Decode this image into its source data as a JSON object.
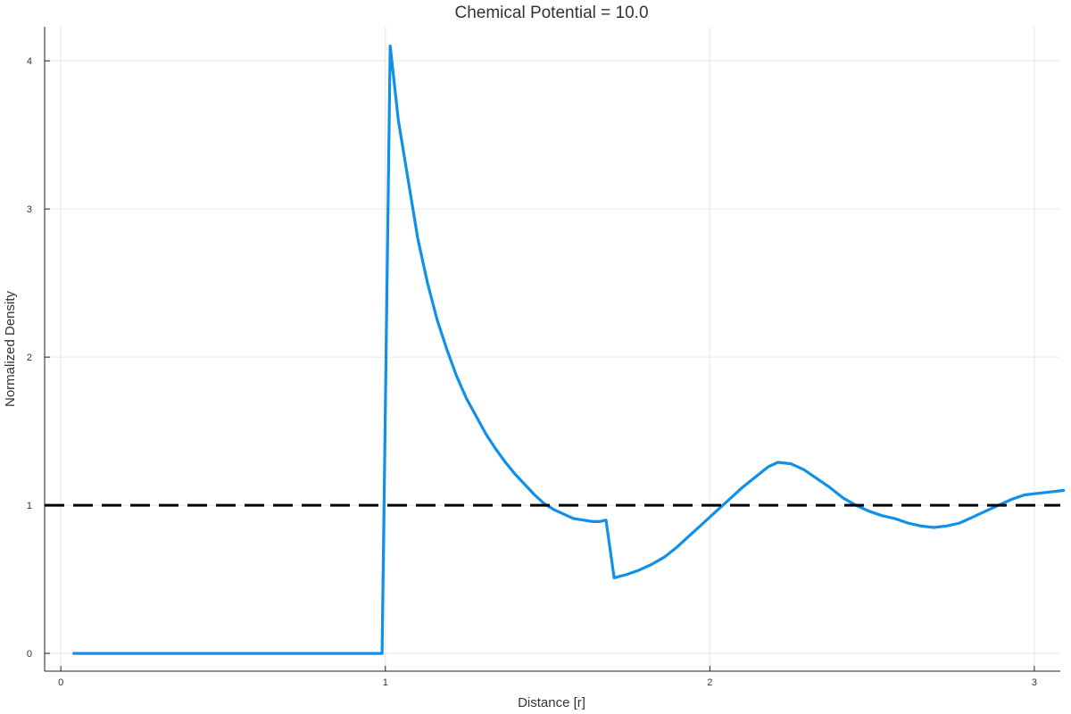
{
  "chart_data": {
    "type": "line",
    "title": "Chemical Potential = 10.0",
    "xlabel": "Distance [r]",
    "ylabel": "Normalized Density",
    "xlim": [
      -0.05,
      3.08
    ],
    "ylim": [
      -0.12,
      4.23
    ],
    "x_ticks": [
      0,
      1,
      2,
      3
    ],
    "y_ticks": [
      0,
      1,
      2,
      3,
      4
    ],
    "grid": true,
    "legend": "none",
    "series": [
      {
        "color": "#1090e8",
        "points": [
          [
            0.04,
            0.0
          ],
          [
            0.5,
            0.0
          ],
          [
            0.99,
            0.0
          ],
          [
            1.015,
            4.1
          ],
          [
            1.04,
            3.6
          ],
          [
            1.07,
            3.2
          ],
          [
            1.1,
            2.8
          ],
          [
            1.13,
            2.5
          ],
          [
            1.16,
            2.25
          ],
          [
            1.19,
            2.05
          ],
          [
            1.22,
            1.87
          ],
          [
            1.25,
            1.72
          ],
          [
            1.28,
            1.6
          ],
          [
            1.31,
            1.48
          ],
          [
            1.34,
            1.38
          ],
          [
            1.37,
            1.29
          ],
          [
            1.4,
            1.21
          ],
          [
            1.43,
            1.14
          ],
          [
            1.46,
            1.07
          ],
          [
            1.49,
            1.01
          ],
          [
            1.52,
            0.97
          ],
          [
            1.55,
            0.94
          ],
          [
            1.58,
            0.91
          ],
          [
            1.61,
            0.9
          ],
          [
            1.64,
            0.89
          ],
          [
            1.66,
            0.89
          ],
          [
            1.68,
            0.9
          ],
          [
            1.705,
            0.51
          ],
          [
            1.74,
            0.53
          ],
          [
            1.78,
            0.56
          ],
          [
            1.82,
            0.6
          ],
          [
            1.86,
            0.65
          ],
          [
            1.9,
            0.72
          ],
          [
            1.94,
            0.8
          ],
          [
            1.98,
            0.88
          ],
          [
            2.02,
            0.96
          ],
          [
            2.06,
            1.04
          ],
          [
            2.1,
            1.12
          ],
          [
            2.14,
            1.19
          ],
          [
            2.18,
            1.26
          ],
          [
            2.21,
            1.29
          ],
          [
            2.25,
            1.28
          ],
          [
            2.29,
            1.24
          ],
          [
            2.33,
            1.18
          ],
          [
            2.37,
            1.12
          ],
          [
            2.41,
            1.05
          ],
          [
            2.45,
            1.0
          ],
          [
            2.49,
            0.96
          ],
          [
            2.53,
            0.93
          ],
          [
            2.57,
            0.91
          ],
          [
            2.61,
            0.88
          ],
          [
            2.65,
            0.86
          ],
          [
            2.69,
            0.85
          ],
          [
            2.73,
            0.86
          ],
          [
            2.77,
            0.88
          ],
          [
            2.81,
            0.92
          ],
          [
            2.85,
            0.96
          ],
          [
            2.89,
            1.0
          ],
          [
            2.93,
            1.04
          ],
          [
            2.97,
            1.07
          ],
          [
            3.01,
            1.08
          ],
          [
            3.05,
            1.09
          ],
          [
            3.09,
            1.1
          ]
        ]
      },
      {
        "color": "#000000",
        "style": "dashed",
        "points": [
          [
            -0.05,
            1.0
          ],
          [
            3.08,
            1.0
          ]
        ]
      }
    ]
  }
}
